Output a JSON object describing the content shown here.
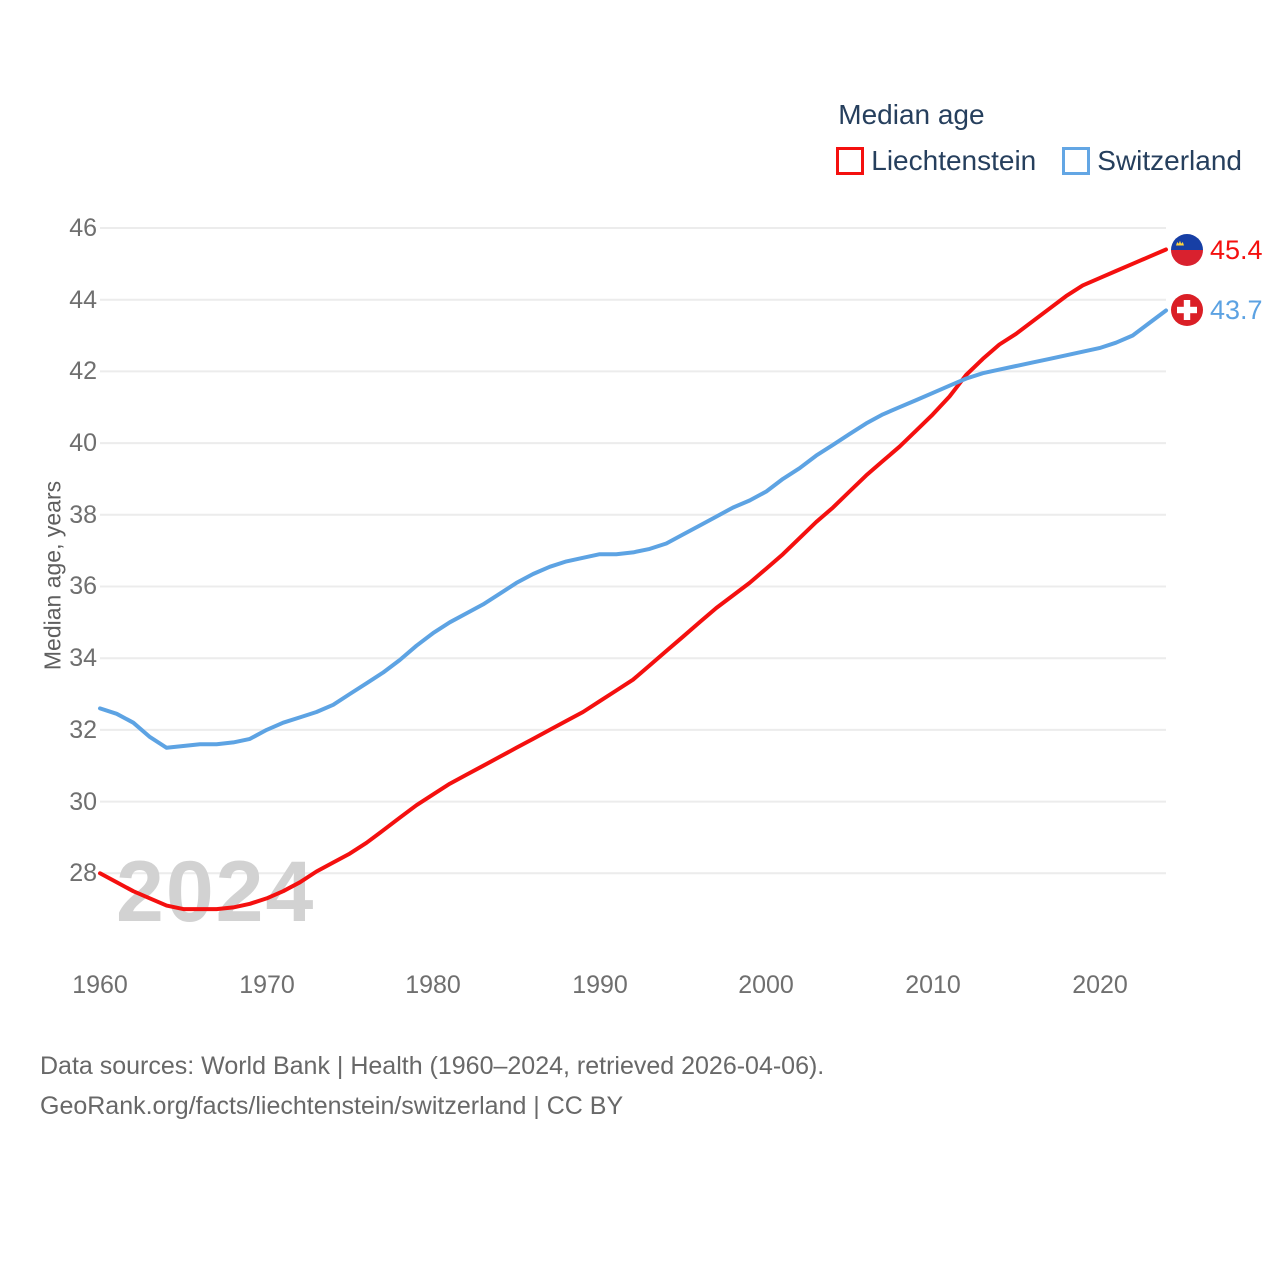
{
  "legend": {
    "title": "Median age",
    "series": [
      {
        "label": "Liechtenstein",
        "color": "#f4100f"
      },
      {
        "label": "Switzerland",
        "color": "#5da3e3"
      }
    ]
  },
  "y_axis": {
    "title": "Median age, years",
    "ticks": [
      46,
      44,
      42,
      40,
      38,
      36,
      34,
      32,
      30,
      28
    ]
  },
  "x_axis": {
    "ticks": [
      1960,
      1970,
      1980,
      1990,
      2000,
      2010,
      2020
    ]
  },
  "watermark": "2024",
  "end_labels": [
    {
      "series": "Liechtenstein",
      "value": "45.4",
      "flag": "liechtenstein-flag"
    },
    {
      "series": "Switzerland",
      "value": "43.7",
      "flag": "switzerland-flag"
    }
  ],
  "caption": {
    "line1": "Data sources: World Bank | Health (1960–2024, retrieved 2026-04-06).",
    "line2": "GeoRank.org/facts/liechtenstein/switzerland | CC BY"
  },
  "colors": {
    "liechtenstein_line": "#f4100f",
    "switzerland_line": "#5da3e3",
    "gridline": "#ececec",
    "tick_text": "#6f6f6f",
    "legend_text": "#263f5d",
    "watermark": "#d2d2d2",
    "flag_li_blue": "#173fa5",
    "flag_li_red": "#d9212e",
    "flag_li_crown": "#ffd43a",
    "flag_ch_red": "#da1f26"
  },
  "chart_data": {
    "type": "line",
    "title": "Median age",
    "xlabel": "",
    "ylabel": "Median age, years",
    "xlim": [
      1960,
      2024
    ],
    "ylim": [
      26.5,
      46.5
    ],
    "grid": "horizontal",
    "legend_position": "top-right",
    "x": [
      1960,
      1961,
      1962,
      1963,
      1964,
      1965,
      1966,
      1967,
      1968,
      1969,
      1970,
      1971,
      1972,
      1973,
      1974,
      1975,
      1976,
      1977,
      1978,
      1979,
      1980,
      1981,
      1982,
      1983,
      1984,
      1985,
      1986,
      1987,
      1988,
      1989,
      1990,
      1991,
      1992,
      1993,
      1994,
      1995,
      1996,
      1997,
      1998,
      1999,
      2000,
      2001,
      2002,
      2003,
      2004,
      2005,
      2006,
      2007,
      2008,
      2009,
      2010,
      2011,
      2012,
      2013,
      2014,
      2015,
      2016,
      2017,
      2018,
      2019,
      2020,
      2021,
      2022,
      2023,
      2024
    ],
    "series": [
      {
        "name": "Liechtenstein",
        "color": "#f4100f",
        "end_value": 45.4,
        "values": [
          28.0,
          27.75,
          27.5,
          27.3,
          27.1,
          27.0,
          27.0,
          27.0,
          27.05,
          27.15,
          27.3,
          27.5,
          27.75,
          28.05,
          28.3,
          28.55,
          28.85,
          29.2,
          29.55,
          29.9,
          30.2,
          30.5,
          30.75,
          31.0,
          31.25,
          31.5,
          31.75,
          32.0,
          32.25,
          32.5,
          32.8,
          33.1,
          33.4,
          33.8,
          34.2,
          34.6,
          35.0,
          35.4,
          35.75,
          36.1,
          36.5,
          36.9,
          37.35,
          37.8,
          38.2,
          38.65,
          39.1,
          39.5,
          39.9,
          40.35,
          40.8,
          41.3,
          41.9,
          42.35,
          42.75,
          43.05,
          43.4,
          43.75,
          44.1,
          44.4,
          44.6,
          44.8,
          45.0,
          45.2,
          45.4
        ]
      },
      {
        "name": "Switzerland",
        "color": "#5da3e3",
        "end_value": 43.7,
        "values": [
          32.6,
          32.45,
          32.2,
          31.8,
          31.5,
          31.55,
          31.6,
          31.6,
          31.65,
          31.75,
          32.0,
          32.2,
          32.35,
          32.5,
          32.7,
          33.0,
          33.3,
          33.6,
          33.95,
          34.35,
          34.7,
          35.0,
          35.25,
          35.5,
          35.8,
          36.1,
          36.35,
          36.55,
          36.7,
          36.8,
          36.9,
          36.9,
          36.95,
          37.05,
          37.2,
          37.45,
          37.7,
          37.95,
          38.2,
          38.4,
          38.65,
          39.0,
          39.3,
          39.65,
          39.95,
          40.25,
          40.55,
          40.8,
          41.0,
          41.2,
          41.4,
          41.6,
          41.8,
          41.95,
          42.05,
          42.15,
          42.25,
          42.35,
          42.45,
          42.55,
          42.65,
          42.8,
          43.0,
          43.35,
          43.7
        ]
      }
    ]
  }
}
